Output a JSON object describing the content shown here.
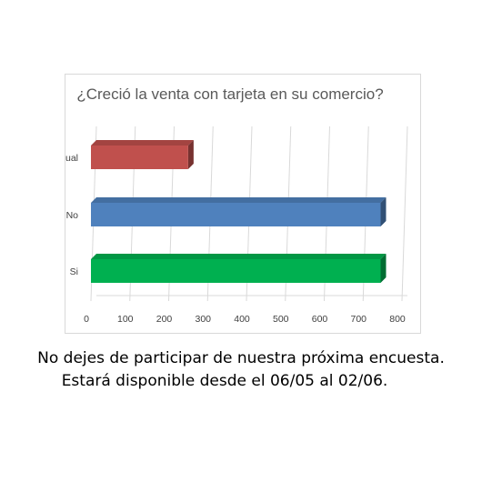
{
  "chart_data": {
    "type": "bar",
    "orientation": "horizontal",
    "title": "¿Creció la venta con tarjeta en su comercio?",
    "categories": [
      "Sigue Igual",
      "No",
      "Si"
    ],
    "values": [
      250,
      745,
      745
    ],
    "colors": [
      "#c0504d",
      "#4f81bd",
      "#00b050"
    ],
    "xlim": [
      0,
      800
    ],
    "xticks": [
      0,
      100,
      200,
      300,
      400,
      500,
      600,
      700,
      800
    ],
    "grid": true,
    "legend": "none",
    "style": "3d"
  },
  "footer": {
    "line1": "No dejes de participar de nuestra próxima encuesta.",
    "line2": "Estará disponible desde el 06/05 al 02/06."
  }
}
